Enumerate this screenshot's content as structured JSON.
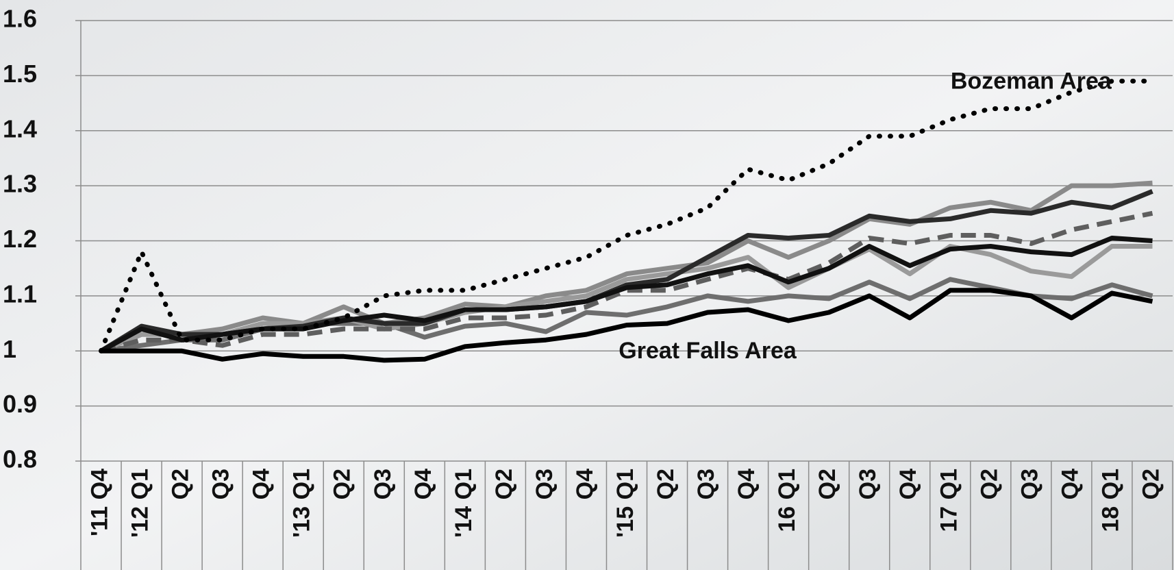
{
  "chart_data": {
    "type": "line",
    "categories": [
      "'11 Q4",
      "'12 Q1",
      "Q2",
      "Q3",
      "Q4",
      "'13 Q1",
      "Q2",
      "Q3",
      "Q4",
      "'14 Q1",
      "Q2",
      "Q3",
      "Q4",
      "'15 Q1",
      "Q2",
      "Q3",
      "Q4",
      "16 Q1",
      "Q2",
      "Q3",
      "Q4",
      "17 Q1",
      "Q2",
      "Q3",
      "Q4",
      "18 Q1",
      "Q2"
    ],
    "series": [
      {
        "color": "#8a8a8a",
        "values": [
          1.0,
          1.03,
          1.03,
          1.04,
          1.06,
          1.05,
          1.08,
          1.05,
          1.06,
          1.085,
          1.08,
          1.1,
          1.11,
          1.14,
          1.15,
          1.16,
          1.2,
          1.17,
          1.2,
          1.24,
          1.23,
          1.26,
          1.27,
          1.255,
          1.3,
          1.3,
          1.305
        ]
      },
      {
        "color": "#6e6e6e",
        "values": [
          1.0,
          1.01,
          1.02,
          1.02,
          1.04,
          1.05,
          1.05,
          1.05,
          1.025,
          1.045,
          1.05,
          1.035,
          1.07,
          1.065,
          1.08,
          1.1,
          1.09,
          1.1,
          1.095,
          1.125,
          1.095,
          1.13,
          1.115,
          1.1,
          1.095,
          1.12,
          1.1
        ]
      },
      {
        "color": "#9a9a9a",
        "values": [
          1.0,
          1.03,
          1.03,
          1.03,
          1.05,
          1.05,
          1.06,
          1.04,
          1.05,
          1.07,
          1.08,
          1.09,
          1.1,
          1.13,
          1.14,
          1.15,
          1.17,
          1.115,
          1.15,
          1.185,
          1.14,
          1.19,
          1.175,
          1.145,
          1.135,
          1.19,
          1.19
        ]
      },
      {
        "color": "#5e5e5e",
        "dashed": true,
        "values": [
          1.0,
          1.02,
          1.02,
          1.01,
          1.03,
          1.03,
          1.04,
          1.04,
          1.04,
          1.06,
          1.06,
          1.065,
          1.08,
          1.11,
          1.11,
          1.13,
          1.15,
          1.13,
          1.16,
          1.205,
          1.195,
          1.21,
          1.21,
          1.195,
          1.22,
          1.235,
          1.25
        ]
      },
      {
        "color": "#2a2a2a",
        "values": [
          1.0,
          1.045,
          1.03,
          1.03,
          1.04,
          1.045,
          1.06,
          1.05,
          1.05,
          1.075,
          1.075,
          1.08,
          1.09,
          1.12,
          1.13,
          1.17,
          1.21,
          1.205,
          1.21,
          1.245,
          1.235,
          1.24,
          1.255,
          1.25,
          1.27,
          1.26,
          1.29
        ]
      },
      {
        "color": "#111111",
        "values": [
          1.0,
          1.04,
          1.02,
          1.03,
          1.04,
          1.04,
          1.055,
          1.065,
          1.055,
          1.075,
          1.075,
          1.08,
          1.09,
          1.115,
          1.12,
          1.14,
          1.155,
          1.125,
          1.15,
          1.19,
          1.155,
          1.185,
          1.19,
          1.18,
          1.175,
          1.205,
          1.2
        ]
      },
      {
        "name": "Great Falls Area",
        "color": "#000000",
        "values": [
          1.0,
          1.0,
          1.0,
          0.985,
          0.995,
          0.99,
          0.99,
          0.983,
          0.985,
          1.008,
          1.015,
          1.02,
          1.03,
          1.047,
          1.05,
          1.07,
          1.075,
          1.055,
          1.07,
          1.1,
          1.06,
          1.11,
          1.11,
          1.1,
          1.06,
          1.105,
          1.09
        ]
      },
      {
        "name": "Bozeman Area",
        "color": "#000000",
        "dotted": true,
        "values": [
          1.0,
          1.18,
          1.02,
          1.02,
          1.04,
          1.04,
          1.06,
          1.1,
          1.11,
          1.11,
          1.13,
          1.15,
          1.17,
          1.21,
          1.23,
          1.26,
          1.33,
          1.31,
          1.34,
          1.39,
          1.39,
          1.42,
          1.44,
          1.44,
          1.47,
          1.49,
          1.49
        ]
      }
    ],
    "ylim": [
      0.8,
      1.6
    ],
    "yticks": [
      {
        "value": 0.8,
        "label": "0.8"
      },
      {
        "value": 0.9,
        "label": "0.9"
      },
      {
        "value": 1.0,
        "label": "1"
      },
      {
        "value": 1.1,
        "label": "1.1"
      },
      {
        "value": 1.2,
        "label": "1.2"
      },
      {
        "value": 1.3,
        "label": "1.3"
      },
      {
        "value": 1.4,
        "label": "1.4"
      },
      {
        "value": 1.5,
        "label": "1.5"
      },
      {
        "value": 1.6,
        "label": "1.6"
      }
    ],
    "grid": true
  }
}
